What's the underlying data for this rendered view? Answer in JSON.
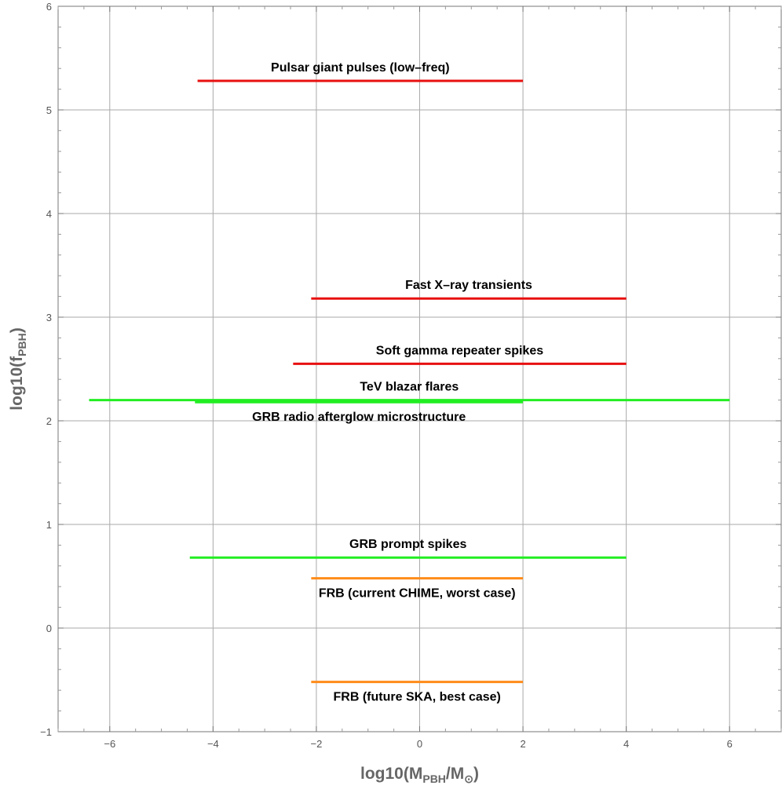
{
  "chart_data": {
    "type": "line",
    "title": "",
    "xlabel": {
      "main": "log10(M",
      "sub": "PBH",
      "mid": "/M",
      "sub2": "⊙",
      "end": ")"
    },
    "ylabel": {
      "main": "log10(f",
      "sub": "PBH",
      "end": ")"
    },
    "xlim": [
      -7,
      7
    ],
    "ylim": [
      -1,
      6
    ],
    "xticks": [
      -6,
      -4,
      -2,
      0,
      2,
      4,
      6
    ],
    "yticks": [
      -1,
      0,
      1,
      2,
      3,
      4,
      5,
      6
    ],
    "grid": true,
    "series": [
      {
        "name": "Pulsar giant pulses (low-freq)",
        "x": [
          -4.3,
          2.0
        ],
        "y": 5.28,
        "color": "#e81010",
        "label_pos": "above"
      },
      {
        "name": "Fast X-ray transients",
        "x": [
          -2.1,
          4.0
        ],
        "y": 3.18,
        "color": "#e81010",
        "label_pos": "above"
      },
      {
        "name": "Soft gamma repeater spikes",
        "x": [
          -2.45,
          4.0
        ],
        "y": 2.55,
        "color": "#e81010",
        "label_pos": "above"
      },
      {
        "name": "TeV blazar flares",
        "x": [
          -6.4,
          6.0
        ],
        "y": 2.2,
        "color": "#22ee22",
        "label_pos": "above"
      },
      {
        "name": "GRB radio afterglow microstructure",
        "x": [
          -4.35,
          2.0
        ],
        "y": 2.18,
        "color": "#22ee22",
        "label_pos": "below"
      },
      {
        "name": "GRB prompt spikes",
        "x": [
          -4.45,
          4.0
        ],
        "y": 0.68,
        "color": "#22ee22",
        "label_pos": "above"
      },
      {
        "name": "FRB (current CHIME, worst case)",
        "x": [
          -2.1,
          2.0
        ],
        "y": 0.48,
        "color": "#ff8c1a",
        "label_pos": "below"
      },
      {
        "name": "FRB (future SKA, best case)",
        "x": [
          -2.1,
          2.0
        ],
        "y": -0.52,
        "color": "#ff8c1a",
        "label_pos": "below"
      }
    ]
  }
}
